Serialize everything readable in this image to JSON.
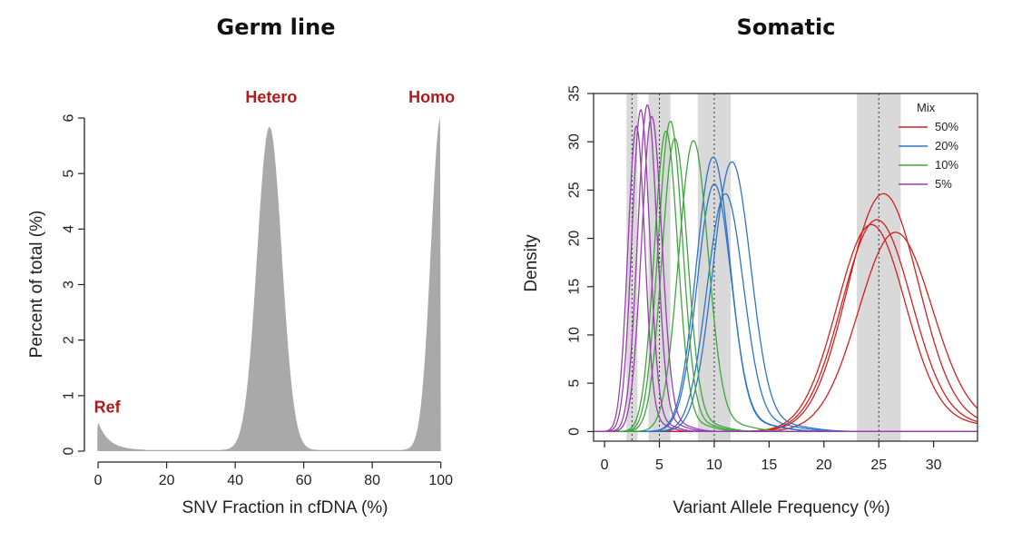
{
  "colors": {
    "fill_gray": "#a9a9a9",
    "band_gray": "#d9d9d9",
    "peak_label": "#b31b1b",
    "red": "#d42020",
    "blue": "#2e74c9",
    "green": "#3fa63f",
    "purple": "#9a3fb0"
  },
  "chart_data": [
    {
      "type": "area",
      "title": "Germ line",
      "xlabel": "SNV Fraction in cfDNA (%)",
      "ylabel": "Percent of total (%)",
      "xlim": [
        -4,
        103
      ],
      "ylim": [
        0,
        6
      ],
      "x_ticks": [
        0,
        20,
        40,
        60,
        80,
        100
      ],
      "y_ticks": [
        0,
        1,
        2,
        3,
        4,
        5,
        6
      ],
      "grid": false,
      "peaks": [
        {
          "label": "Ref",
          "x": 0,
          "height": 0.5
        },
        {
          "label": "Hetero",
          "x": 50,
          "height": 5.82
        },
        {
          "label": "Homo",
          "x": 100,
          "height": 6.0
        }
      ]
    },
    {
      "type": "line",
      "title": "Somatic",
      "xlabel": "Variant Allele Frequency (%)",
      "ylabel": "Density",
      "xlim": [
        -1,
        34
      ],
      "ylim": [
        -1,
        35
      ],
      "x_ticks": [
        0,
        5,
        10,
        15,
        20,
        25,
        30
      ],
      "y_ticks": [
        0,
        5,
        10,
        15,
        20,
        25,
        30,
        35
      ],
      "grid": false,
      "dotted_lines_x": [
        2.5,
        5,
        10,
        25
      ],
      "shaded_bands_x": [
        [
          2.0,
          3.0
        ],
        [
          4.0,
          6.0
        ],
        [
          8.5,
          11.5
        ],
        [
          23.0,
          27.0
        ]
      ],
      "legend": {
        "title": "Mix",
        "position": "top-right",
        "entries": [
          "50%",
          "20%",
          "10%",
          "5%"
        ]
      },
      "series": [
        {
          "name": "50%",
          "color": "red",
          "peaks": [
            {
              "mean": 25.4,
              "height": 24.5
            },
            {
              "mean": 24.8,
              "height": 21.8
            },
            {
              "mean": 26.5,
              "height": 20.5
            },
            {
              "mean": 24.3,
              "height": 21.3
            }
          ]
        },
        {
          "name": "20%",
          "color": "blue",
          "peaks": [
            {
              "mean": 9.9,
              "height": 28.3
            },
            {
              "mean": 11.6,
              "height": 27.8
            },
            {
              "mean": 10.0,
              "height": 25.5
            },
            {
              "mean": 11.0,
              "height": 24.5
            }
          ]
        },
        {
          "name": "10%",
          "color": "green",
          "peaks": [
            {
              "mean": 6.0,
              "height": 32.0
            },
            {
              "mean": 8.1,
              "height": 30.0
            },
            {
              "mean": 5.6,
              "height": 31.0
            },
            {
              "mean": 6.4,
              "height": 30.2
            }
          ]
        },
        {
          "name": "5%",
          "color": "purple",
          "peaks": [
            {
              "mean": 3.3,
              "height": 33.2
            },
            {
              "mean": 3.9,
              "height": 33.7
            },
            {
              "mean": 4.3,
              "height": 32.5
            },
            {
              "mean": 2.9,
              "height": 31.5
            }
          ]
        }
      ]
    }
  ]
}
